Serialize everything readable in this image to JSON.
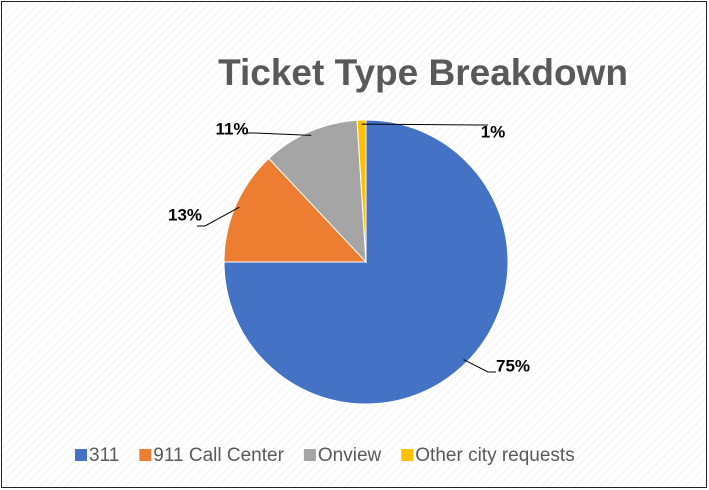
{
  "chart_data": {
    "type": "pie",
    "title": "Ticket Type Breakdown",
    "categories": [
      "311",
      "911 Call Center",
      "Onview",
      "Other city requests"
    ],
    "values": [
      75,
      13,
      11,
      1
    ],
    "value_labels": [
      "75%",
      "13%",
      "11%",
      "1%"
    ],
    "colors": [
      "#4472c4",
      "#ed7d31",
      "#a5a5a5",
      "#ffc000"
    ],
    "legend": "bottom"
  }
}
